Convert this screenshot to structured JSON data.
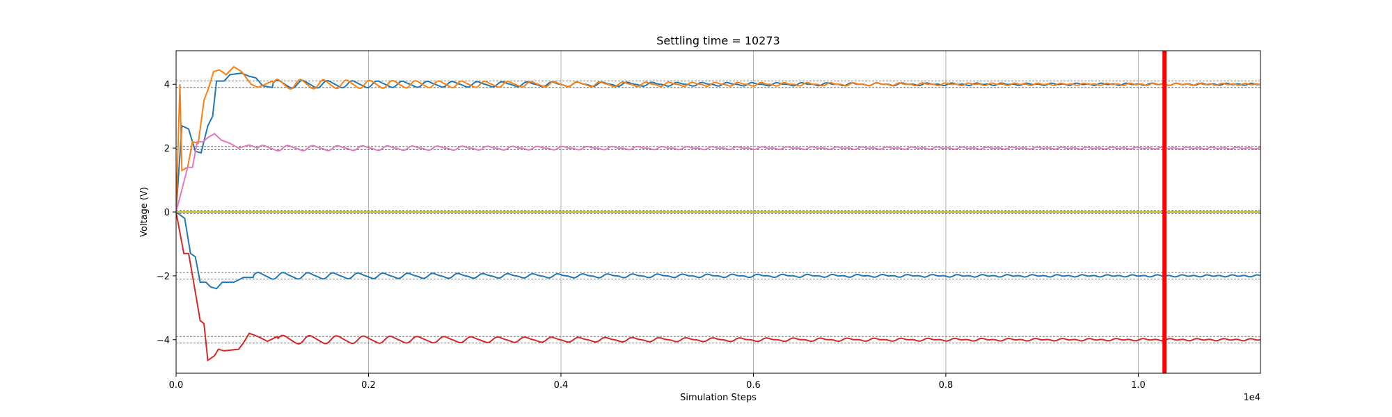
{
  "chart_data": {
    "type": "line",
    "title": "Settling time = 10273",
    "xlabel": "Simulation Steps",
    "ylabel": "Voltage (V)",
    "x_offset_label": "1e4",
    "xlim": [
      0,
      11270
    ],
    "ylim": [
      -5.05,
      5.05
    ],
    "grid": "vertical",
    "x_ticks": [
      {
        "value": 0,
        "label": "0.0"
      },
      {
        "value": 2000,
        "label": "0.2"
      },
      {
        "value": 4000,
        "label": "0.4"
      },
      {
        "value": 6000,
        "label": "0.6"
      },
      {
        "value": 8000,
        "label": "0.8"
      },
      {
        "value": 10000,
        "label": "1.0"
      }
    ],
    "y_ticks": [
      {
        "value": -4,
        "label": "−4"
      },
      {
        "value": -2,
        "label": "−2"
      },
      {
        "value": 0,
        "label": "0"
      },
      {
        "value": 2,
        "label": "2"
      },
      {
        "value": 4,
        "label": "4"
      }
    ],
    "tolerance_bands": [
      -4.1,
      -3.9,
      -2.1,
      -1.9,
      -0.05,
      0.05,
      1.95,
      2.05,
      3.9,
      4.1
    ],
    "settling_time": 10273,
    "colors": {
      "blue": "#1f77b4",
      "orange": "#ff7f0e",
      "red": "#d62728",
      "pink": "#e377c2",
      "olive": "#bcbd22",
      "marker": "#ff0000",
      "band": "#555555",
      "grid": "#b0b0b0"
    },
    "series": [
      {
        "color": "#1f77b4",
        "target": 4,
        "keypoints": [
          [
            0,
            0
          ],
          [
            60,
            2.7
          ],
          [
            130,
            2.6
          ],
          [
            200,
            1.9
          ],
          [
            260,
            1.85
          ],
          [
            330,
            2.7
          ],
          [
            380,
            3.0
          ],
          [
            420,
            4.1
          ],
          [
            500,
            4.1
          ],
          [
            560,
            4.3
          ],
          [
            680,
            4.35
          ],
          [
            760,
            4.25
          ],
          [
            830,
            4.2
          ],
          [
            900,
            3.95
          ],
          [
            1000,
            3.9
          ]
        ],
        "amp": 0.12,
        "period": 260,
        "decay": 4500
      },
      {
        "color": "#ff7f0e",
        "target": 4,
        "keypoints": [
          [
            0,
            0
          ],
          [
            40,
            4.0
          ],
          [
            60,
            1.3
          ],
          [
            120,
            1.4
          ],
          [
            170,
            2.2
          ],
          [
            230,
            2.15
          ],
          [
            290,
            3.5
          ],
          [
            340,
            3.9
          ],
          [
            390,
            4.4
          ],
          [
            450,
            4.45
          ],
          [
            520,
            4.3
          ],
          [
            600,
            4.55
          ],
          [
            680,
            4.4
          ],
          [
            780,
            4.0
          ],
          [
            850,
            3.9
          ],
          [
            1000,
            4.1
          ]
        ],
        "amp": 0.15,
        "period": 240,
        "decay": 4000
      },
      {
        "color": "#1f77b4",
        "target": -2,
        "keypoints": [
          [
            0,
            0
          ],
          [
            90,
            -0.2
          ],
          [
            150,
            -1.3
          ],
          [
            200,
            -1.4
          ],
          [
            250,
            -2.2
          ],
          [
            310,
            -2.2
          ],
          [
            360,
            -2.35
          ],
          [
            420,
            -2.4
          ],
          [
            480,
            -2.2
          ],
          [
            600,
            -2.2
          ],
          [
            700,
            -2.05
          ],
          [
            800,
            -2.05
          ]
        ],
        "amp": 0.1,
        "period": 260,
        "decay": 5000
      },
      {
        "color": "#d62728",
        "target": -4,
        "keypoints": [
          [
            0,
            0
          ],
          [
            80,
            -1.3
          ],
          [
            130,
            -1.3
          ],
          [
            200,
            -2.5
          ],
          [
            250,
            -3.4
          ],
          [
            290,
            -3.5
          ],
          [
            330,
            -4.65
          ],
          [
            400,
            -4.5
          ],
          [
            440,
            -4.3
          ],
          [
            500,
            -4.35
          ],
          [
            650,
            -4.3
          ],
          [
            700,
            -4.1
          ],
          [
            760,
            -3.8
          ],
          [
            850,
            -3.9
          ],
          [
            950,
            -4.05
          ],
          [
            1050,
            -3.9
          ]
        ],
        "amp": 0.13,
        "period": 280,
        "decay": 4500
      },
      {
        "color": "#e377c2",
        "target": 2,
        "keypoints": [
          [
            0,
            0
          ],
          [
            120,
            1.4
          ],
          [
            170,
            1.4
          ],
          [
            220,
            2.2
          ],
          [
            280,
            2.2
          ],
          [
            340,
            2.35
          ],
          [
            400,
            2.45
          ],
          [
            470,
            2.25
          ],
          [
            560,
            2.15
          ],
          [
            650,
            2.0
          ],
          [
            760,
            2.1
          ],
          [
            850,
            2.0
          ]
        ],
        "amp": 0.08,
        "period": 260,
        "decay": 5000
      },
      {
        "color": "#bcbd22",
        "target": 0,
        "keypoints": [
          [
            0,
            0
          ],
          [
            11270,
            0
          ]
        ],
        "amp": 0,
        "period": 300,
        "decay": 5000
      }
    ]
  }
}
